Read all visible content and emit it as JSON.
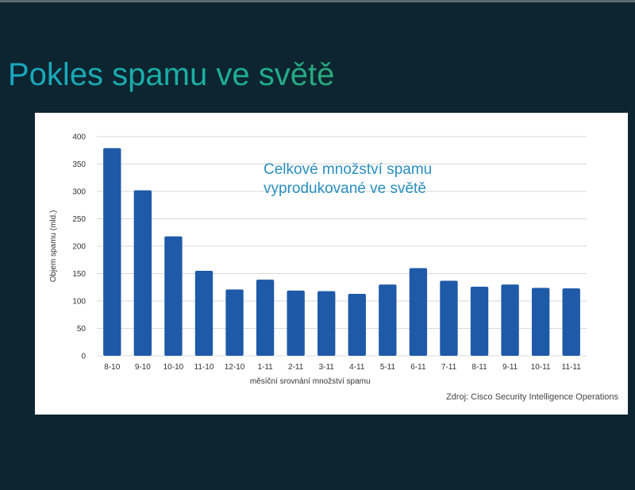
{
  "slide": {
    "title": "Pokles spamu ve světě"
  },
  "chart_data": {
    "type": "bar",
    "title": "",
    "annotation_lines": [
      "Celkové množství spamu",
      "vyprodukované ve světě"
    ],
    "xlabel": "měsíční srovnání množství spamu",
    "ylabel": "Objem spamu  (mld.)",
    "source": "Zdroj: Cisco Security Intelligence Operations",
    "categories": [
      "8-10",
      "9-10",
      "10-10",
      "11-10",
      "12-10",
      "1-11",
      "2-11",
      "3-11",
      "4-11",
      "5-11",
      "6-11",
      "7-11",
      "8-11",
      "9-11",
      "10-11",
      "11-11"
    ],
    "values": [
      379,
      302,
      218,
      155,
      121,
      139,
      119,
      118,
      113,
      130,
      160,
      137,
      126,
      130,
      124,
      123
    ],
    "ylim": [
      0,
      400
    ],
    "yticks": [
      0,
      50,
      100,
      150,
      200,
      250,
      300,
      350,
      400
    ],
    "grid": true,
    "bar_color": "#1f5aa8"
  }
}
